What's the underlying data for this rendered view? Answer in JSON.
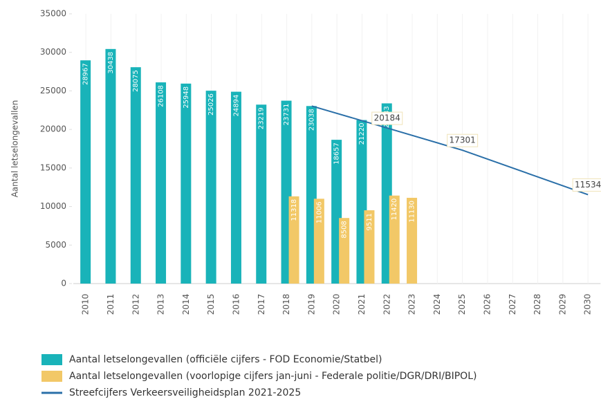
{
  "chart_data": {
    "type": "bar",
    "y_label": "Aantal letselongevallen",
    "categories": [
      "2010",
      "2011",
      "2012",
      "2013",
      "2014",
      "2015",
      "2016",
      "2017",
      "2018",
      "2019",
      "2020",
      "2021",
      "2022",
      "2023",
      "2024",
      "2025",
      "2026",
      "2027",
      "2028",
      "2029",
      "2030"
    ],
    "ylim": [
      0,
      35000
    ],
    "yticks": [
      0,
      5000,
      10000,
      15000,
      20000,
      25000,
      30000,
      35000
    ],
    "legend": "bottom",
    "series": [
      {
        "name": "Aantal letselongevallen (officiële cijfers - FOD Economie/Statbel)",
        "color": "#19b3b9",
        "values": [
          28967,
          30438,
          28075,
          26108,
          25948,
          25026,
          24894,
          23219,
          23731,
          23038,
          18657,
          21220,
          23383,
          null,
          null,
          null,
          null,
          null,
          null,
          null,
          null
        ]
      },
      {
        "name": "Aantal letselongevallen (voorlopige cijfers jan-juni - Federale politie/DGR/DRI/BIPOL)",
        "color": "#f2c867",
        "values": [
          null,
          null,
          null,
          null,
          null,
          null,
          null,
          null,
          11318,
          11006,
          8508,
          9511,
          11420,
          11130,
          null,
          null,
          null,
          null,
          null,
          null,
          null
        ]
      },
      {
        "name": "Streefcijfers Verkeersveiligheidsplan 2021-2025",
        "color": "#2a6fa8",
        "type": "line",
        "x": [
          2019,
          2022,
          2025,
          2030
        ],
        "values": [
          23038,
          20184,
          17301,
          11534
        ],
        "value_labels": [
          null,
          "20184",
          "17301",
          "11534"
        ]
      }
    ]
  }
}
